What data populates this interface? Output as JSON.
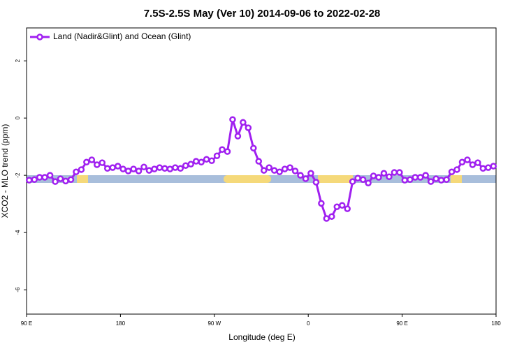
{
  "chart_data": {
    "type": "line",
    "title": "7.5S-2.5S May (Ver 10)   2014-09-06 to 2022-02-28",
    "x_label": "Longitude (deg E)",
    "y_label": "XCO2 - MLO trend (ppm)",
    "xlim": [
      90,
      540
    ],
    "xticks": [
      {
        "value": 90,
        "label": "90 E"
      },
      {
        "value": 180,
        "label": "180"
      },
      {
        "value": 270,
        "label": "90 W"
      },
      {
        "value": 360,
        "label": "0"
      },
      {
        "value": 450,
        "label": "90 E"
      },
      {
        "value": 540,
        "label": "180"
      }
    ],
    "ylim": [
      -6.85,
      3.15
    ],
    "yticks": [
      -6,
      -4,
      -2,
      0,
      2
    ],
    "legend": "top-left",
    "x": [
      92.5,
      97.5,
      102.5,
      107.5,
      112.5,
      117.5,
      122.5,
      127.5,
      132.5,
      137.5,
      142.5,
      147.5,
      152.5,
      157.5,
      162.5,
      167.5,
      172.5,
      177.5,
      182.5,
      187.5,
      192.5,
      197.5,
      202.5,
      207.5,
      212.5,
      217.5,
      222.5,
      227.5,
      232.5,
      237.5,
      242.5,
      247.5,
      252.5,
      257.5,
      262.5,
      267.5,
      272.5,
      277.5,
      282.5,
      287.5,
      292.5,
      297.5,
      302.5,
      307.5,
      312.5,
      317.5,
      322.5,
      327.5,
      332.5,
      337.5,
      342.5,
      347.5,
      352.5,
      357.5,
      362.5,
      367.5,
      372.5,
      377.5,
      382.5,
      387.5,
      392.5,
      397.5,
      402.5,
      407.5,
      412.5,
      417.5,
      422.5,
      427.5,
      432.5,
      437.5,
      442.5,
      447.5,
      452.5,
      457.5,
      462.5,
      467.5,
      472.5,
      477.5,
      482.5,
      487.5,
      492.5,
      497.5,
      502.5,
      507.5,
      512.5,
      517.5,
      522.5,
      527.5,
      532.5,
      537.5
    ],
    "series": [
      {
        "name": "Land (Nadir&Glint) and Ocean (Glint)",
        "color": "#a020f0",
        "values": [
          -2.17,
          -2.15,
          -2.07,
          -2.07,
          -2.0,
          -2.22,
          -2.12,
          -2.2,
          -2.15,
          -1.88,
          -1.8,
          -1.54,
          -1.46,
          -1.63,
          -1.56,
          -1.76,
          -1.73,
          -1.68,
          -1.78,
          -1.85,
          -1.78,
          -1.85,
          -1.71,
          -1.83,
          -1.78,
          -1.73,
          -1.76,
          -1.78,
          -1.73,
          -1.76,
          -1.66,
          -1.61,
          -1.51,
          -1.54,
          -1.44,
          -1.49,
          -1.32,
          -1.1,
          -1.17,
          -0.05,
          -0.63,
          -0.15,
          -0.34,
          -1.05,
          -1.51,
          -1.83,
          -1.73,
          -1.83,
          -1.88,
          -1.78,
          -1.73,
          -1.85,
          -2.0,
          -2.12,
          -1.93,
          -2.24,
          -2.98,
          -3.51,
          -3.44,
          -3.1,
          -3.05,
          -3.17,
          -2.22,
          -2.1,
          -2.15,
          -2.27,
          -2.02,
          -2.07,
          -1.93,
          -2.05,
          -1.9,
          -1.9,
          -2.17,
          -2.15,
          -2.07,
          -2.07,
          -2.0,
          -2.22,
          -2.12,
          -2.17,
          -2.15,
          -1.88,
          -1.8,
          -1.54,
          -1.46,
          -1.63,
          -1.56,
          -1.76,
          -1.73,
          -1.68
        ]
      }
    ]
  }
}
